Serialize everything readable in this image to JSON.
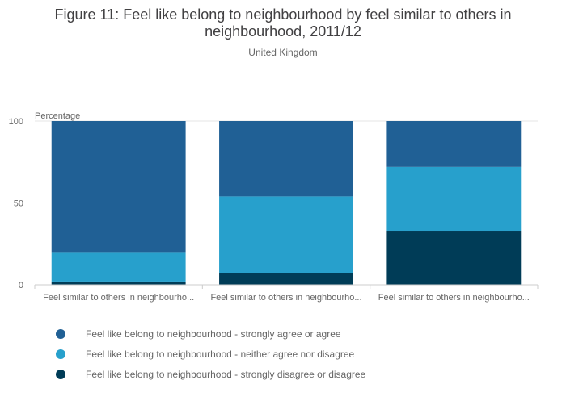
{
  "chart_data": {
    "type": "bar",
    "stacked": true,
    "title_lines": [
      "Figure 11: Feel like belong to neighbourhood by feel similar to others in",
      "neighbourhood, 2011/12"
    ],
    "subtitle": "United Kingdom",
    "ylabel": "Percentage",
    "ylim": [
      0,
      100
    ],
    "yticks": [
      0,
      50,
      100
    ],
    "grid": true,
    "categories": [
      "Feel similar to others in neighbourho...",
      "Feel similar to others in neighbourho...",
      "Feel similar to others in neighbourho..."
    ],
    "series": [
      {
        "name": "Feel like belong to neighbourhood - strongly disagree or disagree",
        "color": "#003c57",
        "values": [
          2,
          7,
          33
        ]
      },
      {
        "name": "Feel like belong to neighbourhood - neither agree nor disagree",
        "color": "#27a0cc",
        "values": [
          18,
          47,
          39
        ]
      },
      {
        "name": "Feel like belong to neighbourhood - strongly agree or agree",
        "color": "#206095",
        "values": [
          80,
          46,
          28
        ]
      }
    ],
    "legend": {
      "placement": "bottom-left",
      "order": [
        "Feel like belong to neighbourhood - strongly agree or agree",
        "Feel like belong to neighbourhood - neither agree nor disagree",
        "Feel like belong to neighbourhood - strongly disagree or disagree"
      ]
    }
  }
}
